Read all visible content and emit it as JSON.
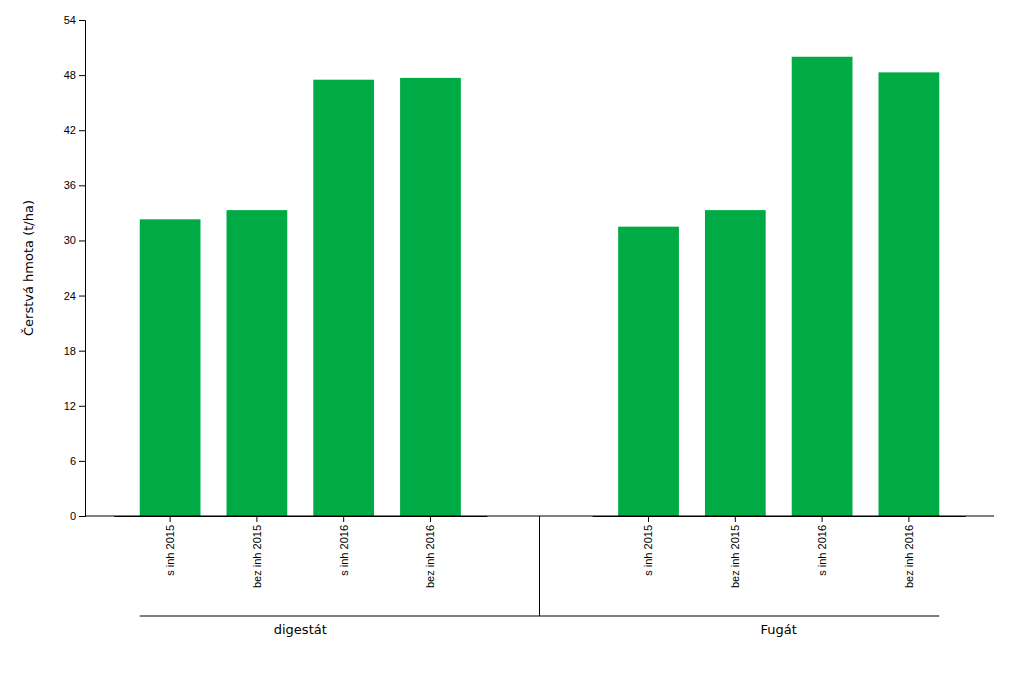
{
  "chart_data": {
    "type": "bar",
    "ylabel": "Čerstvá hmota (t/ha)",
    "categories": [
      "s inh 2015",
      "bez inh 2015",
      "s inh 2016",
      "bez inh 2016"
    ],
    "series": [
      {
        "name": "digestát",
        "color": "#00aa44",
        "values": [
          32.3,
          33.3,
          47.5,
          47.7
        ]
      },
      {
        "name": "Fugát",
        "color": "#00aa44",
        "values": [
          31.5,
          33.3,
          50.0,
          48.3
        ]
      }
    ],
    "ylim": [
      0,
      54
    ],
    "yticks": [
      0,
      6,
      12,
      18,
      24,
      30,
      36,
      42,
      48,
      54
    ],
    "grid": false
  }
}
